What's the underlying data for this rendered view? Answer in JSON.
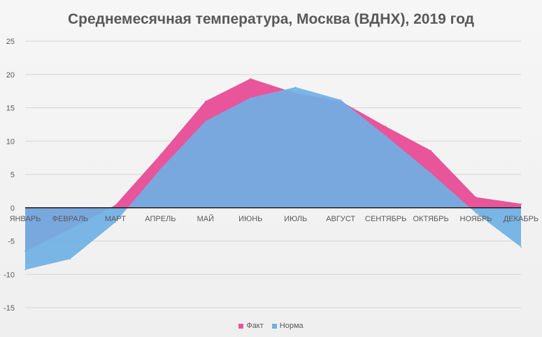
{
  "chart_data": {
    "type": "area",
    "title": "Среднемесячная температура, Москва (ВДНХ), 2019 год",
    "categories": [
      "ЯНВАРЬ",
      "ФЕВРАЛЬ",
      "МАРТ",
      "АПРЕЛЬ",
      "МАЙ",
      "ИЮНЬ",
      "ИЮЛЬ",
      "АВГУСТ",
      "СЕНТЯБРЬ",
      "ОКТЯБРЬ",
      "НОЯБРЬ",
      "ДЕКАБРЬ"
    ],
    "series": [
      {
        "name": "Факт",
        "color": "#e8559a",
        "values": [
          -6.5,
          -3.2,
          0.4,
          8.0,
          16.0,
          19.4,
          17.2,
          16.0,
          12.2,
          8.6,
          1.6,
          0.6
        ]
      },
      {
        "name": "Норма",
        "color": "#6fb0e4",
        "values": [
          -9.3,
          -7.7,
          -2.2,
          5.8,
          13.0,
          16.5,
          18.1,
          16.2,
          10.8,
          5.2,
          -0.8,
          -5.9
        ]
      }
    ],
    "ylim": [
      -15,
      25
    ],
    "yticks": [
      25,
      20,
      15,
      10,
      5,
      0,
      -5,
      -10,
      -15
    ],
    "grid": true,
    "legend_position": "bottom"
  }
}
